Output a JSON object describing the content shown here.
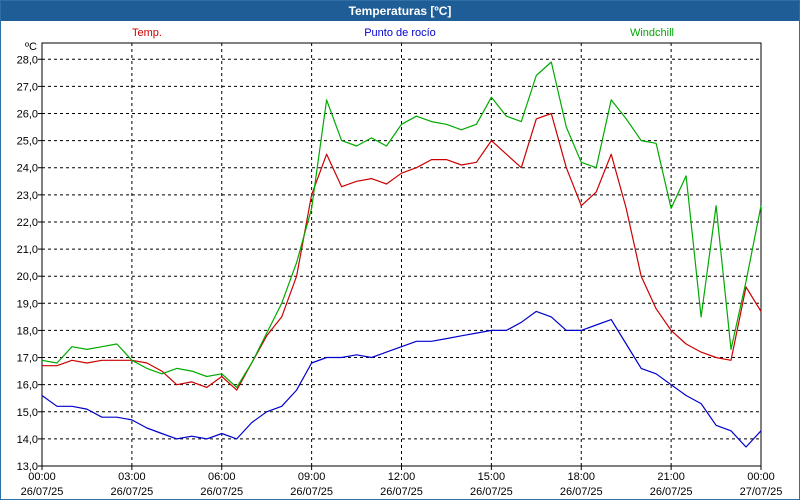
{
  "window": {
    "title": "Temperaturas [ºC]"
  },
  "chart_data": {
    "type": "line",
    "title": "Temperaturas [ºC]",
    "ylabel": "ºC",
    "xlabel": "",
    "ylim": [
      13.0,
      28.6
    ],
    "grid": true,
    "legend_placement": "top",
    "yticks": [
      "13,0",
      "14,0",
      "15,0",
      "16,0",
      "17,0",
      "18,0",
      "19,0",
      "20,0",
      "21,0",
      "22,0",
      "23,0",
      "24,0",
      "25,0",
      "26,0",
      "27,0",
      "28,0"
    ],
    "ytick_values": [
      13,
      14,
      15,
      16,
      17,
      18,
      19,
      20,
      21,
      22,
      23,
      24,
      25,
      26,
      27,
      28
    ],
    "xticks": [
      {
        "time": "00:00",
        "date": "26/07/25",
        "hour": 0
      },
      {
        "time": "03:00",
        "date": "26/07/25",
        "hour": 3
      },
      {
        "time": "06:00",
        "date": "26/07/25",
        "hour": 6
      },
      {
        "time": "09:00",
        "date": "26/07/25",
        "hour": 9
      },
      {
        "time": "12:00",
        "date": "26/07/25",
        "hour": 12
      },
      {
        "time": "15:00",
        "date": "26/07/25",
        "hour": 15
      },
      {
        "time": "18:00",
        "date": "26/07/25",
        "hour": 18
      },
      {
        "time": "21:00",
        "date": "26/07/25",
        "hour": 21
      },
      {
        "time": "00:00",
        "date": "27/07/25",
        "hour": 24
      }
    ],
    "x_hours": [
      0,
      0.5,
      1,
      1.5,
      2,
      2.5,
      3,
      3.5,
      4,
      4.5,
      5,
      5.5,
      6,
      6.5,
      7,
      7.5,
      8,
      8.5,
      9,
      9.5,
      10,
      10.5,
      11,
      11.5,
      12,
      12.5,
      13,
      13.5,
      14,
      14.5,
      15,
      15.5,
      16,
      16.5,
      17,
      17.5,
      18,
      18.5,
      19,
      19.5,
      20,
      20.5,
      21,
      21.5,
      22,
      22.5,
      23,
      23.5,
      24
    ],
    "series": [
      {
        "name": "Temp.",
        "color": "#cc0000",
        "values": [
          16.7,
          16.7,
          16.9,
          16.8,
          16.9,
          16.9,
          16.9,
          16.8,
          16.5,
          16.0,
          16.1,
          15.9,
          16.3,
          15.8,
          16.8,
          17.8,
          18.5,
          20.0,
          23.0,
          24.5,
          23.3,
          23.5,
          23.6,
          23.4,
          23.8,
          24.0,
          24.3,
          24.3,
          24.1,
          24.2,
          25.0,
          24.5,
          24.0,
          25.8,
          26.0,
          24.0,
          22.6,
          23.1,
          24.5,
          22.5,
          20.0,
          18.8,
          18.0,
          17.5,
          17.2,
          17.0,
          16.9,
          19.6,
          18.7
        ]
      },
      {
        "name": "Punto de rocío",
        "color": "#0000cc",
        "values": [
          15.6,
          15.2,
          15.2,
          15.1,
          14.8,
          14.8,
          14.7,
          14.4,
          14.2,
          14.0,
          14.1,
          14.0,
          14.2,
          14.0,
          14.6,
          15.0,
          15.2,
          15.8,
          16.8,
          17.0,
          17.0,
          17.1,
          17.0,
          17.2,
          17.4,
          17.6,
          17.6,
          17.7,
          17.8,
          17.9,
          18.0,
          18.0,
          18.3,
          18.7,
          18.5,
          18.0,
          18.0,
          18.2,
          18.4,
          17.5,
          16.6,
          16.4,
          16.0,
          15.6,
          15.3,
          14.5,
          14.3,
          13.7,
          14.3
        ]
      },
      {
        "name": "Windchill",
        "color": "#00aa00",
        "values": [
          16.9,
          16.8,
          17.4,
          17.3,
          17.4,
          17.5,
          16.9,
          16.6,
          16.4,
          16.6,
          16.5,
          16.3,
          16.4,
          15.9,
          16.8,
          17.9,
          19.0,
          20.5,
          22.5,
          26.5,
          25.0,
          24.8,
          25.1,
          24.8,
          25.6,
          25.9,
          25.7,
          25.6,
          25.4,
          25.6,
          26.6,
          25.9,
          25.7,
          27.4,
          27.9,
          25.5,
          24.2,
          24.0,
          26.5,
          25.8,
          25.0,
          24.9,
          22.5,
          23.7,
          18.5,
          22.6,
          17.3,
          19.8,
          22.6
        ]
      }
    ]
  }
}
